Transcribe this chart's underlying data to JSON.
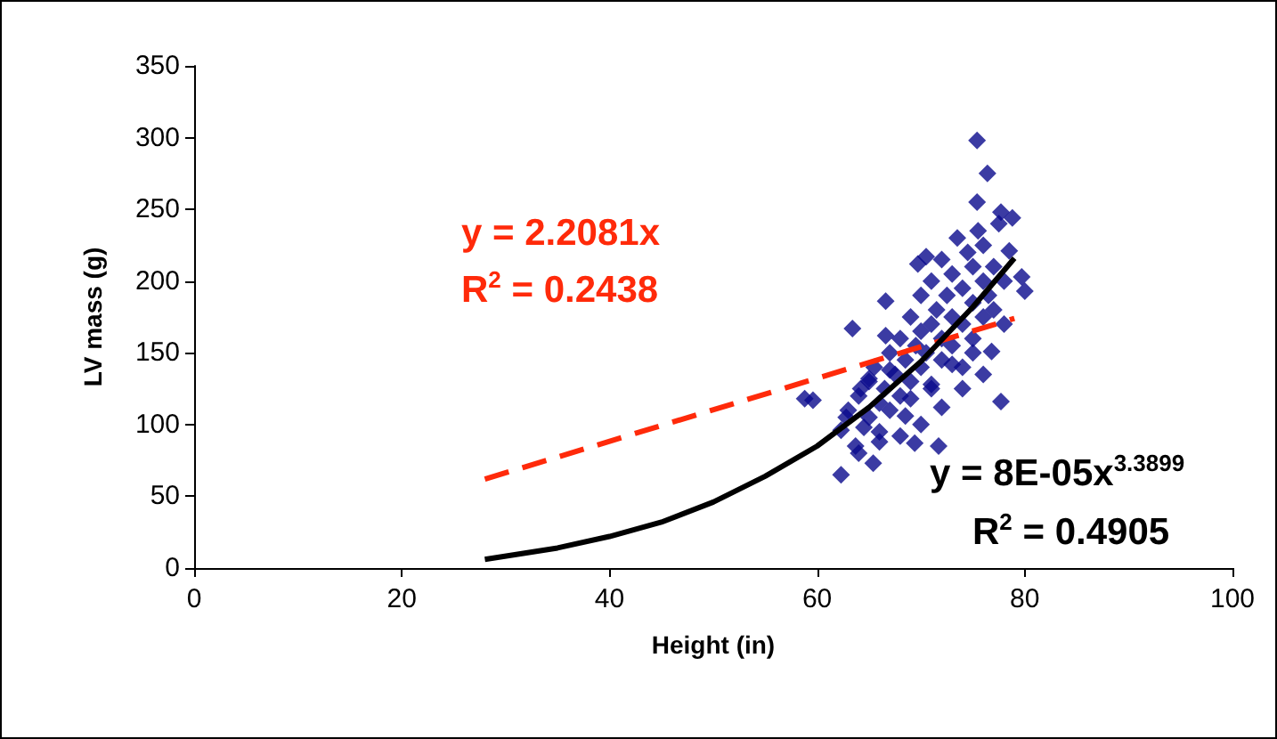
{
  "chart_data": {
    "type": "scatter",
    "xlabel": "Height (in)",
    "ylabel": "LV mass (g)",
    "xlim": [
      0,
      100
    ],
    "xticks": [
      0,
      20,
      40,
      60,
      80,
      100
    ],
    "ylim": [
      0,
      350
    ],
    "yticks": [
      0,
      50,
      100,
      150,
      200,
      250,
      300,
      350
    ],
    "grid": false,
    "marker": "diamond",
    "series": [
      {
        "color": "#0a0a8c",
        "x": [
          75.4,
          76.4,
          75.4,
          77.7,
          78.8,
          78.5,
          70.5,
          69.7,
          66.6,
          63.4,
          66.6,
          58.8,
          59.6,
          62.3,
          62.3,
          63.7,
          65.4,
          68.5,
          69.4,
          71.7,
          77.7,
          76.8,
          79.7,
          80,
          63,
          64,
          64.5,
          65,
          65,
          65.5,
          66,
          66,
          66.5,
          67,
          67,
          67.5,
          68,
          68,
          68.5,
          69,
          69,
          69.5,
          70,
          70,
          70,
          70.5,
          71,
          71,
          71,
          71.5,
          72,
          72,
          72,
          72.5,
          73,
          73,
          73,
          73.5,
          74,
          74,
          74,
          74.5,
          75,
          75,
          75,
          75.5,
          76,
          76,
          76,
          76.5,
          77,
          77,
          77.5,
          78,
          78,
          64,
          66,
          68,
          70,
          72,
          74,
          76,
          65,
          67,
          69,
          71,
          73,
          75,
          62.8,
          64.2
        ],
        "values": [
          298,
          275,
          255,
          248,
          244,
          221,
          217,
          212,
          186,
          167,
          162,
          118,
          117,
          65,
          96,
          85,
          73,
          106,
          87,
          85,
          116,
          151,
          203,
          193,
          110,
          120,
          98,
          130,
          105,
          140,
          115,
          95,
          125,
          150,
          110,
          135,
          160,
          120,
          145,
          130,
          175,
          155,
          140,
          165,
          190,
          150,
          125,
          170,
          200,
          180,
          145,
          160,
          215,
          190,
          155,
          175,
          205,
          230,
          170,
          195,
          140,
          220,
          185,
          210,
          160,
          235,
          200,
          175,
          225,
          190,
          210,
          180,
          240,
          200,
          170,
          80,
          88,
          92,
          100,
          112,
          125,
          135,
          132,
          138,
          118,
          128,
          142,
          150,
          105,
          125
        ]
      },
      {
        "type": "line",
        "color": "#ff2a0a",
        "x": [
          28,
          79
        ],
        "values": [
          62,
          174
        ],
        "marker": "none",
        "line_style": "dashed"
      },
      {
        "type": "line",
        "color": "#000000",
        "x": [
          28,
          35,
          40,
          45,
          50,
          55,
          60,
          65,
          70,
          75,
          79
        ],
        "values": [
          6,
          14,
          22,
          32,
          46,
          64,
          85,
          112,
          144,
          182,
          216
        ],
        "marker": "none",
        "line_style": "solid"
      }
    ],
    "annotations": [
      "y = 2.2081x",
      "R$^{2}$ = 0.2438",
      "y = 8E-05x$^{3.3899}$",
      "R$^{2}$ = 0.4905"
    ]
  }
}
